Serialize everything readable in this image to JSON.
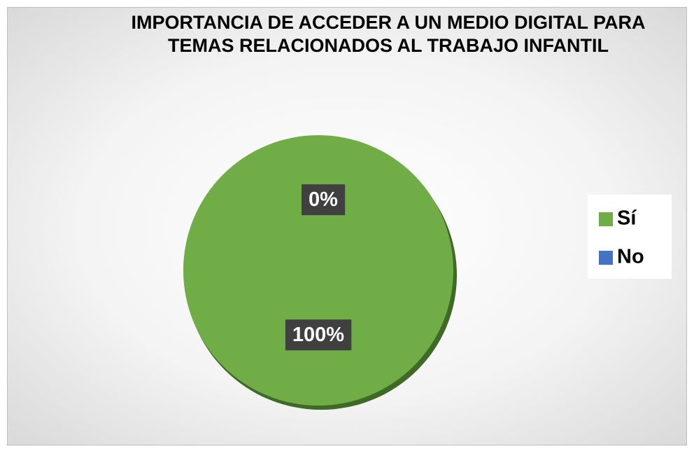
{
  "chart_data": {
    "type": "pie",
    "title": "IMPORTANCIA DE ACCEDER A UN MEDIO DIGITAL PARA TEMAS RELACIONADOS AL TRABAJO INFANTIL",
    "categories": [
      "Sí",
      "No"
    ],
    "values": [
      100,
      0
    ],
    "value_labels": [
      "100%",
      "0%"
    ],
    "colors": [
      "#70ad47",
      "#4472c4"
    ],
    "legend": "right"
  }
}
